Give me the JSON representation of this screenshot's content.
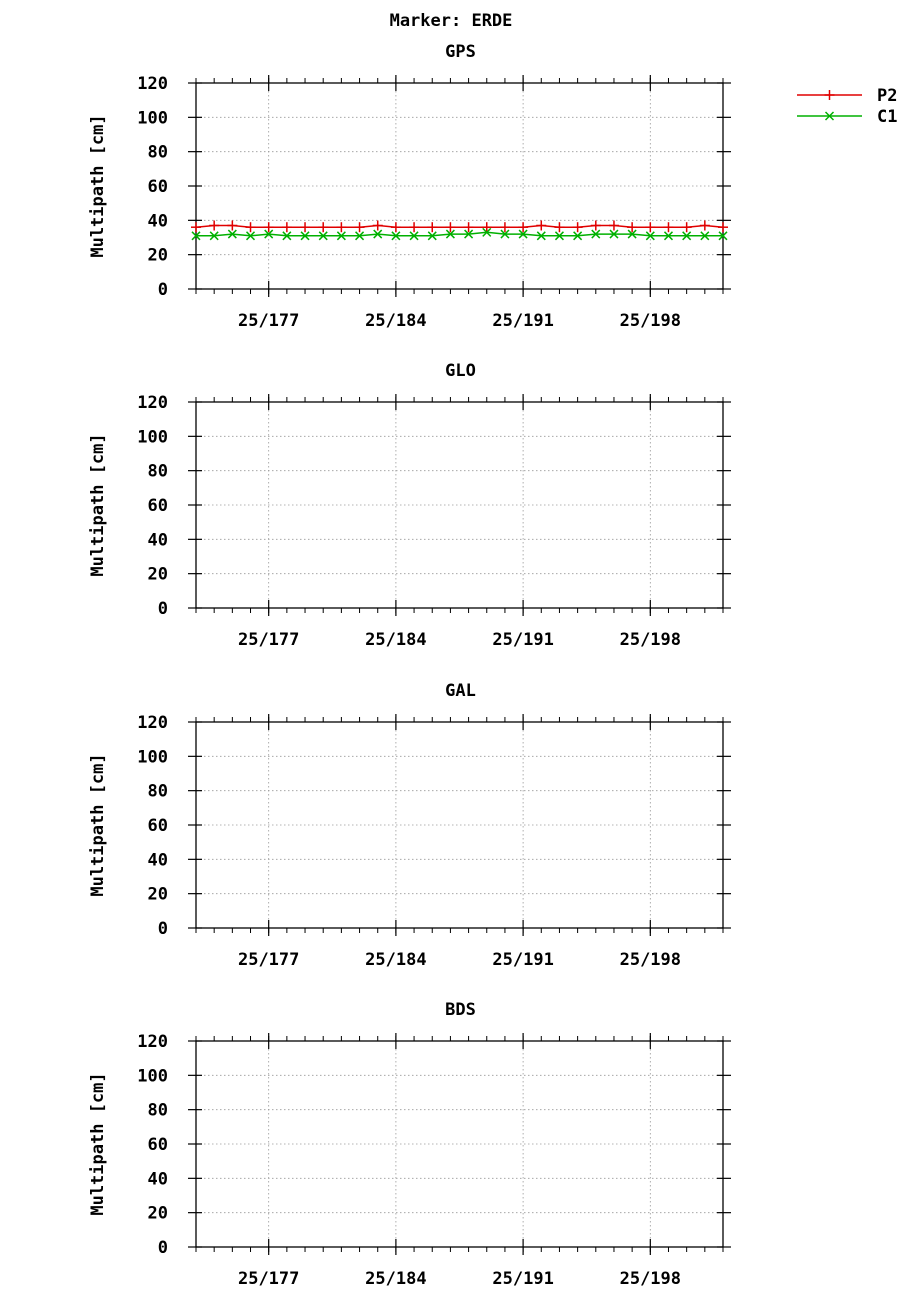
{
  "page_title": "Marker: ERDE",
  "legend_position": "top-right",
  "chart_data": [
    {
      "type": "line",
      "title": "GPS",
      "ylabel": "Multipath [cm]",
      "ylim": [
        0,
        120
      ],
      "yticks": [
        "0",
        "20",
        "40",
        "60",
        "80",
        "100",
        "120"
      ],
      "xlim": [
        173,
        202
      ],
      "xticks": [
        {
          "x": 177,
          "label": "25/177"
        },
        {
          "x": 184,
          "label": "25/184"
        },
        {
          "x": 191,
          "label": "25/191"
        },
        {
          "x": 198,
          "label": "25/198"
        }
      ],
      "grid": true,
      "series": [
        {
          "name": "P2",
          "color": "#e00000",
          "marker": "plus",
          "x": [
            173,
            174,
            175,
            176,
            177,
            178,
            179,
            180,
            181,
            182,
            183,
            184,
            185,
            186,
            187,
            188,
            189,
            190,
            191,
            192,
            193,
            194,
            195,
            196,
            197,
            198,
            199,
            200,
            201,
            202
          ],
          "values": [
            36,
            37,
            37,
            36,
            36,
            36,
            36,
            36,
            36,
            36,
            37,
            36,
            36,
            36,
            36,
            36,
            36,
            36,
            36,
            37,
            36,
            36,
            37,
            37,
            36,
            36,
            36,
            36,
            37,
            36
          ]
        },
        {
          "name": "C1",
          "color": "#00b000",
          "marker": "cross",
          "x": [
            173,
            174,
            175,
            176,
            177,
            178,
            179,
            180,
            181,
            182,
            183,
            184,
            185,
            186,
            187,
            188,
            189,
            190,
            191,
            192,
            193,
            194,
            195,
            196,
            197,
            198,
            199,
            200,
            201,
            202
          ],
          "values": [
            31,
            31,
            32,
            31,
            32,
            31,
            31,
            31,
            31,
            31,
            32,
            31,
            31,
            31,
            32,
            32,
            33,
            32,
            32,
            31,
            31,
            31,
            32,
            32,
            32,
            31,
            31,
            31,
            31,
            31
          ]
        }
      ]
    },
    {
      "type": "line",
      "title": "GLO",
      "ylabel": "Multipath [cm]",
      "ylim": [
        0,
        120
      ],
      "yticks": [
        "0",
        "20",
        "40",
        "60",
        "80",
        "100",
        "120"
      ],
      "xlim": [
        173,
        202
      ],
      "xticks": [
        {
          "x": 177,
          "label": "25/177"
        },
        {
          "x": 184,
          "label": "25/184"
        },
        {
          "x": 191,
          "label": "25/191"
        },
        {
          "x": 198,
          "label": "25/198"
        }
      ],
      "grid": true,
      "series": []
    },
    {
      "type": "line",
      "title": "GAL",
      "ylabel": "Multipath [cm]",
      "ylim": [
        0,
        120
      ],
      "yticks": [
        "0",
        "20",
        "40",
        "60",
        "80",
        "100",
        "120"
      ],
      "xlim": [
        173,
        202
      ],
      "xticks": [
        {
          "x": 177,
          "label": "25/177"
        },
        {
          "x": 184,
          "label": "25/184"
        },
        {
          "x": 191,
          "label": "25/191"
        },
        {
          "x": 198,
          "label": "25/198"
        }
      ],
      "grid": true,
      "series": []
    },
    {
      "type": "line",
      "title": "BDS",
      "ylabel": "Multipath [cm]",
      "ylim": [
        0,
        120
      ],
      "yticks": [
        "0",
        "20",
        "40",
        "60",
        "80",
        "100",
        "120"
      ],
      "xlim": [
        173,
        202
      ],
      "xticks": [
        {
          "x": 177,
          "label": "25/177"
        },
        {
          "x": 184,
          "label": "25/184"
        },
        {
          "x": 191,
          "label": "25/191"
        },
        {
          "x": 198,
          "label": "25/198"
        }
      ],
      "grid": true,
      "series": []
    }
  ]
}
